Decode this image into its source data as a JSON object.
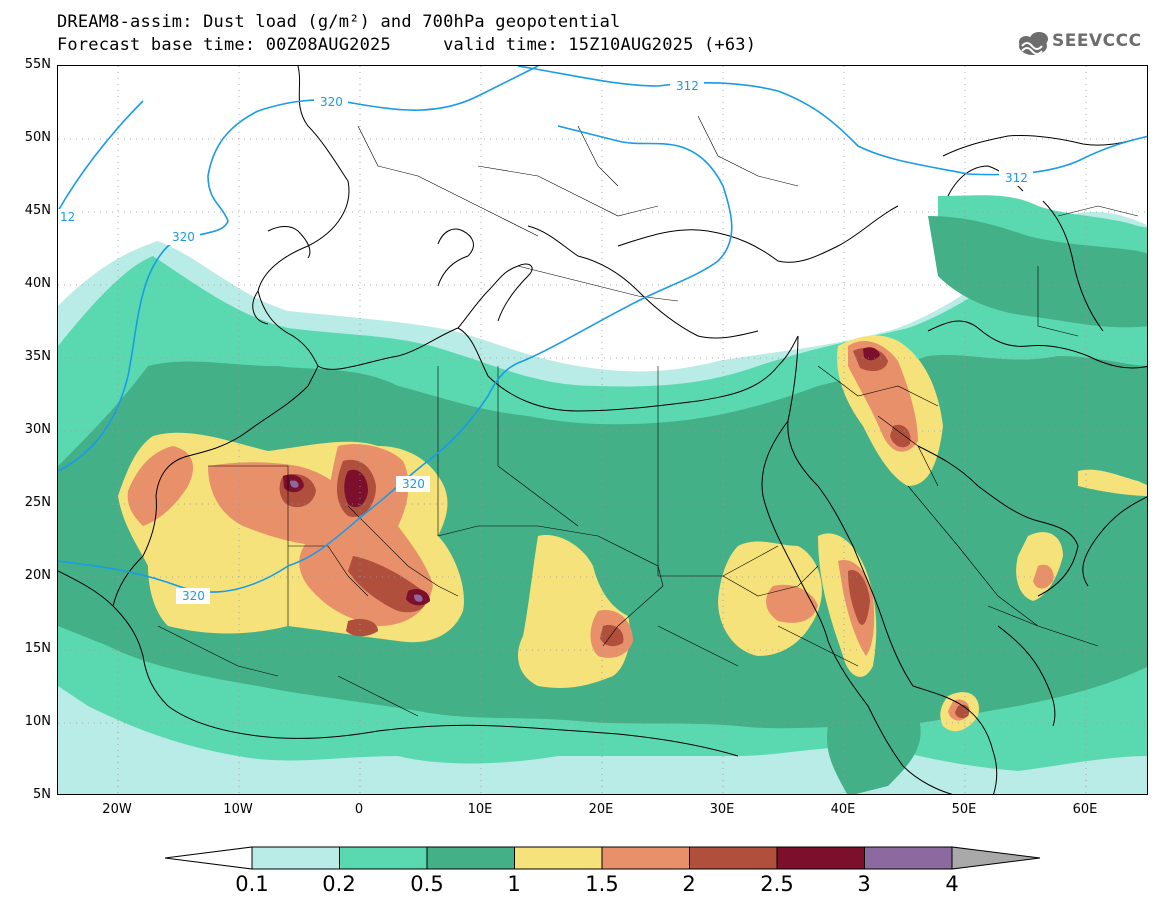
{
  "header": {
    "title_line1": "DREAM8-assim: Dust load (g/m²) and 700hPa geopotential",
    "title_line2": "Forecast base time: 00Z08AUG2025     valid time: 15Z10AUG2025 (+63)",
    "logo_text": "SEEVCCC"
  },
  "axes": {
    "lat_labels": [
      "55N",
      "50N",
      "45N",
      "40N",
      "35N",
      "30N",
      "25N",
      "20N",
      "15N",
      "10N",
      "5N"
    ],
    "lon_labels": [
      "20W",
      "10W",
      "0",
      "10E",
      "20E",
      "30E",
      "40E",
      "50E",
      "60E"
    ]
  },
  "contours": {
    "geopotential_labels": [
      "320",
      "312",
      "312",
      "12",
      "320",
      "320",
      "320"
    ],
    "line_color": "#1a9be6"
  },
  "legend": {
    "levels": [
      "0.1",
      "0.2",
      "0.5",
      "1",
      "1.5",
      "2",
      "2.5",
      "3",
      "4"
    ],
    "colors": [
      "#b9ece6",
      "#5ad9b0",
      "#43b088",
      "#f5e27a",
      "#e8906a",
      "#b04f3c",
      "#7b0f2c",
      "#8c6aa0"
    ],
    "undercolor": "#ffffff",
    "overcolor": "#a9a9a9"
  }
}
